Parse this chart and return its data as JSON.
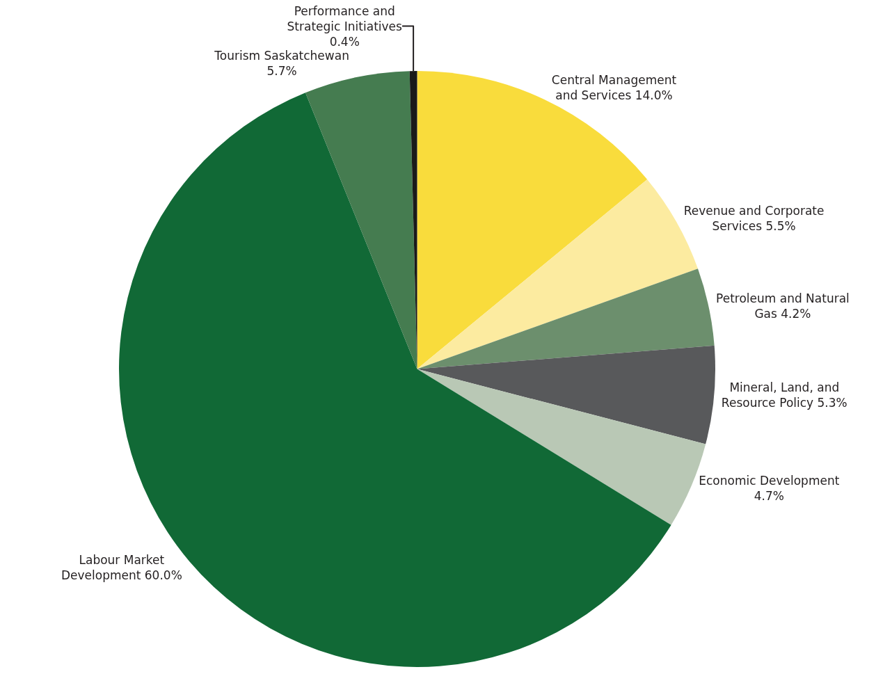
{
  "chart_data": {
    "type": "pie",
    "categories": [
      "Central Management and Services",
      "Revenue and Corporate Services",
      "Petroleum and Natural Gas",
      "Mineral, Land, and Resource Policy",
      "Economic Development",
      "Labour Market Development",
      "Tourism Saskatchewan",
      "Performance and Strategic Initiatives"
    ],
    "values": [
      14.0,
      5.5,
      4.2,
      5.3,
      4.7,
      60.0,
      5.7,
      0.4
    ],
    "value_labels": [
      "14.0%",
      "5.5%",
      "4.2%",
      "5.3%",
      "4.7%",
      "60.0%",
      "5.7%",
      "0.4%"
    ],
    "colors": [
      "#f9dc3c",
      "#fceba0",
      "#6c8f6d",
      "#58595b",
      "#b9c8b5",
      "#116936",
      "#457c50",
      "#1a1a1a"
    ],
    "legend": false
  }
}
